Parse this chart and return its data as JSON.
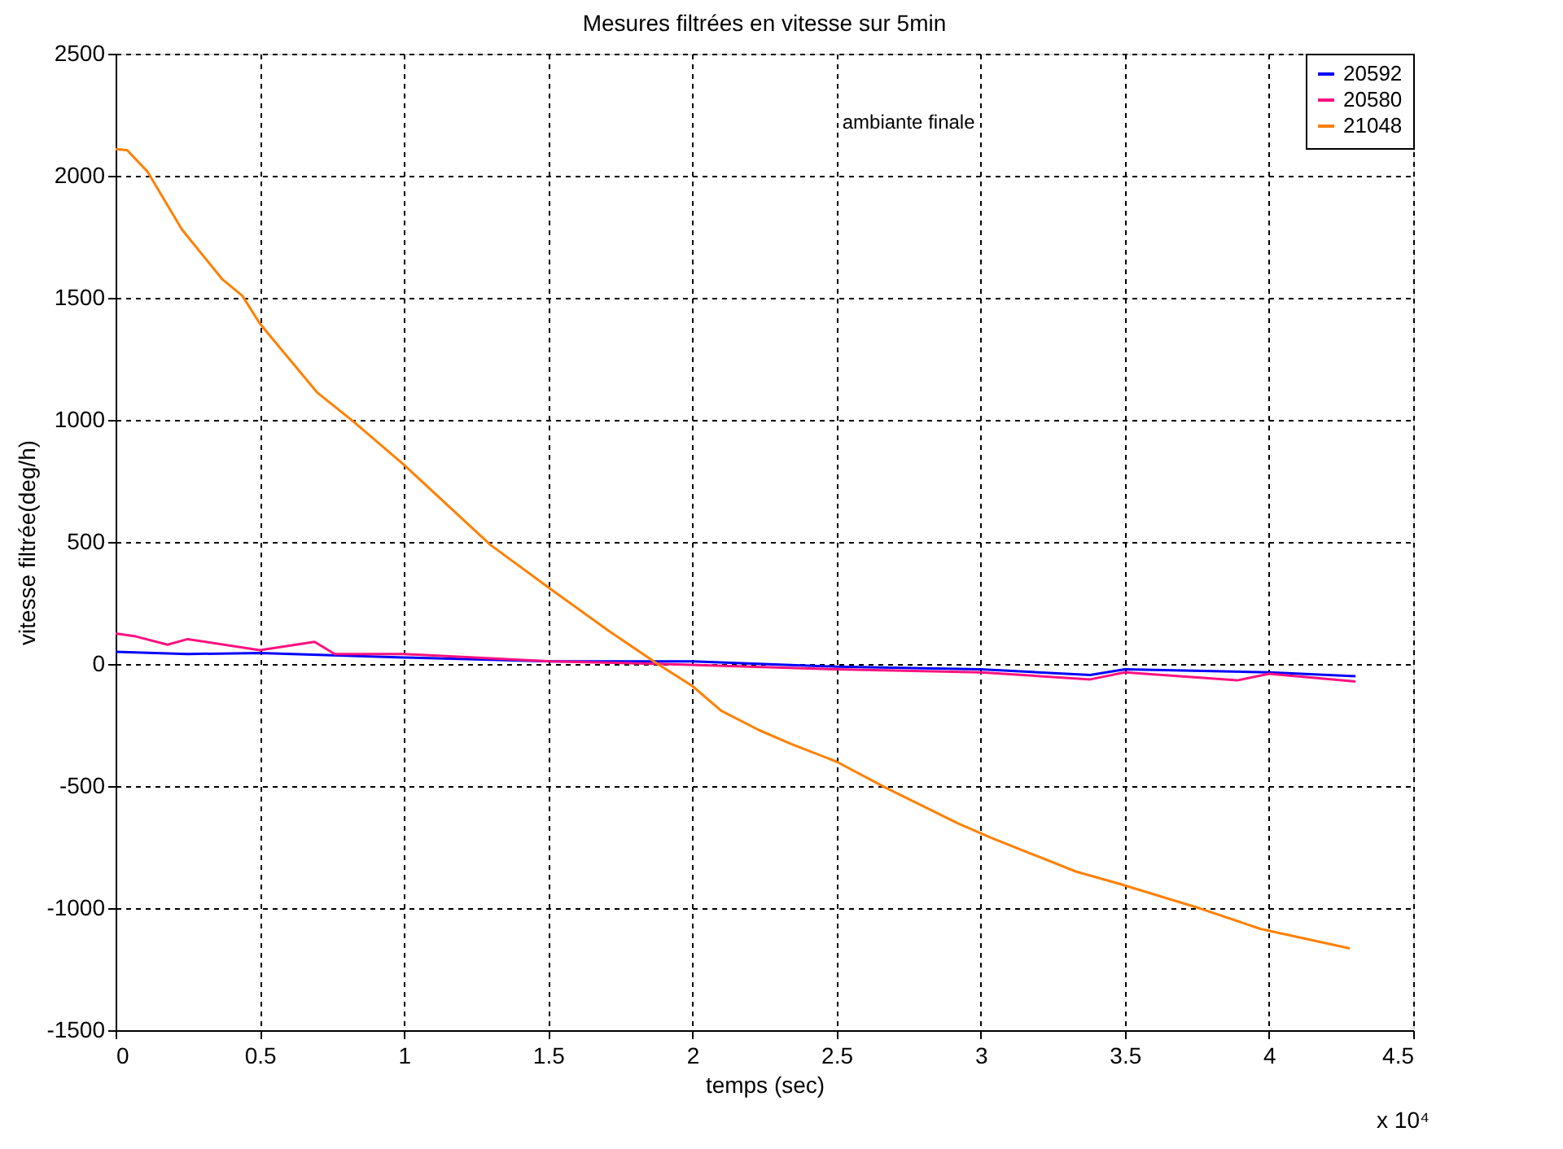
{
  "chart_data": {
    "type": "line",
    "title": "Mesures filtrées en vitesse sur 5min",
    "xlabel": "temps (sec)",
    "ylabel": "vitesse filtrée(deg/h)",
    "xlim": [
      0,
      4.5
    ],
    "xticks": [
      0,
      0.5,
      1,
      1.5,
      2,
      2.5,
      3,
      3.5,
      4,
      4.5
    ],
    "ylim": [
      -1500,
      2500
    ],
    "yticks": [
      -1500,
      -1000,
      -500,
      0,
      500,
      1000,
      1500,
      2000,
      2500
    ],
    "grid": true,
    "legend": "top right",
    "line_style": "solid",
    "marker": "none",
    "annotations": [
      "ambiante finale",
      "x 10⁴"
    ],
    "series": [
      {
        "name": "20592",
        "color": "#0000ff",
        "x": [
          0,
          0.25,
          0.5,
          1,
          1.51,
          1.9,
          2,
          2.5,
          3,
          3.38,
          3.5,
          4,
          4.3
        ],
        "values": [
          50,
          41,
          45,
          27,
          11,
          11,
          11,
          -11,
          -22,
          -45,
          -22,
          -34,
          -50
        ]
      },
      {
        "name": "20580",
        "color": "#ff1080",
        "x": [
          0,
          0.07,
          0.18,
          0.25,
          0.5,
          0.69,
          0.76,
          1,
          1.51,
          1.9,
          2.5,
          3,
          3.38,
          3.5,
          3.89,
          4,
          4.3
        ],
        "values": [
          125,
          113,
          79,
          102,
          57,
          91,
          41,
          41,
          11,
          0,
          -22,
          -34,
          -63,
          -34,
          -67,
          -40,
          -72
        ]
      },
      {
        "name": "21048",
        "color": "#ff8000",
        "x": [
          0,
          0.04,
          0.11,
          0.23,
          0.37,
          0.44,
          0.5,
          0.7,
          0.82,
          1,
          1.3,
          1.51,
          1.71,
          1.88,
          2,
          2.1,
          2.23,
          2.34,
          2.5,
          2.67,
          2.92,
          3.03,
          3.33,
          3.48,
          3.76,
          3.97,
          4.28
        ],
        "values": [
          2109,
          2105,
          2018,
          1780,
          1576,
          1508,
          1395,
          1111,
          998,
          816,
          488,
          306,
          136,
          0,
          -90,
          -191,
          -270,
          -326,
          -400,
          -506,
          -652,
          -709,
          -850,
          -900,
          -1001,
          -1085,
          -1165
        ]
      }
    ]
  }
}
